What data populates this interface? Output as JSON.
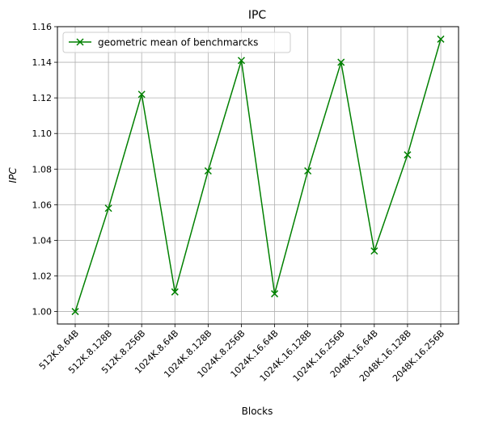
{
  "chart_data": {
    "type": "line",
    "title": "IPC",
    "xlabel": "Blocks",
    "ylabel": "IPC",
    "categories": [
      "512K.8.64B",
      "512K.8.128B",
      "512K.8.256B",
      "1024K.8.64B",
      "1024K.8.128B",
      "1024K.8.256B",
      "1024K.16.64B",
      "1024K.16.128B",
      "1024K.16.256B",
      "2048K.16.64B",
      "2048K.16.128B",
      "2048K.16.256B"
    ],
    "series": [
      {
        "name": "geometric mean of benchmarcks",
        "color": "#008000",
        "marker": "x",
        "values": [
          1.0,
          1.058,
          1.122,
          1.011,
          1.079,
          1.141,
          1.01,
          1.079,
          1.14,
          1.034,
          1.088,
          1.153
        ]
      }
    ],
    "ylim": [
      0.993,
      1.16
    ],
    "yticks": [
      1.0,
      1.02,
      1.04,
      1.06,
      1.08,
      1.1,
      1.12,
      1.14,
      1.16
    ],
    "yticklabels": [
      "1.00",
      "1.02",
      "1.04",
      "1.06",
      "1.08",
      "1.10",
      "1.12",
      "1.14",
      "1.16"
    ],
    "grid": true,
    "legend_position": "top-left"
  }
}
